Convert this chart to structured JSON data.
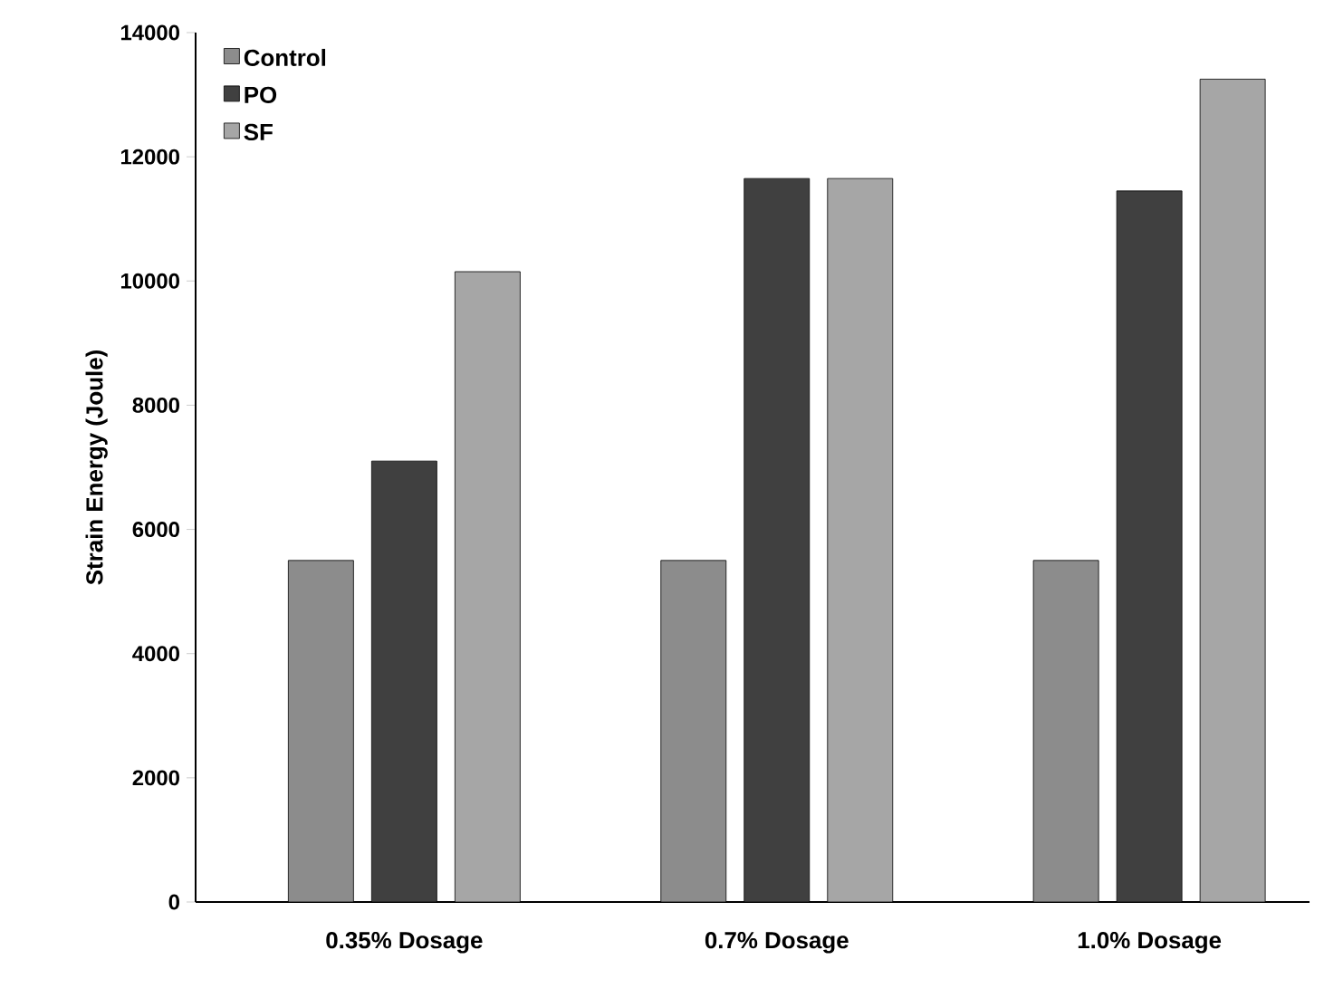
{
  "chart_data": {
    "type": "bar",
    "ylabel": "Strain Energy (Joule)",
    "categories": [
      "0.35% Dosage",
      "0.7% Dosage",
      "1.0% Dosage"
    ],
    "series": [
      {
        "name": "Control",
        "color": "#8c8c8c",
        "values": [
          5500,
          5500,
          5500
        ]
      },
      {
        "name": "PO",
        "color": "#404040",
        "values": [
          7100,
          11650,
          11450
        ]
      },
      {
        "name": "SF",
        "color": "#a6a6a6",
        "values": [
          10150,
          11650,
          13250
        ]
      }
    ],
    "ylim": [
      0,
      14000
    ],
    "yticks": [
      0,
      2000,
      4000,
      6000,
      8000,
      10000,
      12000,
      14000
    ],
    "grid": false,
    "legend": "top left"
  }
}
